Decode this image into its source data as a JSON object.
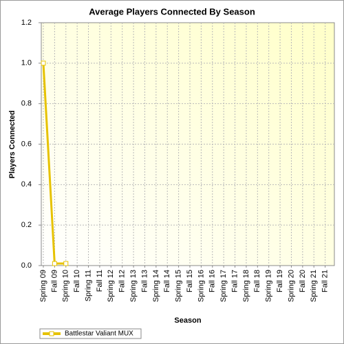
{
  "chart_data": {
    "type": "line",
    "title": "Average Players Connected By Season",
    "xlabel": "Season",
    "ylabel": "Players Connected",
    "categories": [
      "Spring 09",
      "Fall 09",
      "Spring 10",
      "Fall 10",
      "Spring 11",
      "Fall 11",
      "Spring 12",
      "Fall 12",
      "Spring 13",
      "Fall 13",
      "Spring 14",
      "Fall 14",
      "Spring 15",
      "Fall 15",
      "Spring 16",
      "Fall 16",
      "Spring 17",
      "Fall 17",
      "Spring 18",
      "Fall 18",
      "Spring 19",
      "Fall 19",
      "Spring 20",
      "Fall 20",
      "Spring 21",
      "Fall 21"
    ],
    "series": [
      {
        "name": "Battlestar Valiant MUX",
        "color": "#e6c200",
        "values": [
          1.0,
          0.01,
          0.01,
          null,
          null,
          null,
          null,
          null,
          null,
          null,
          null,
          null,
          null,
          null,
          null,
          null,
          null,
          null,
          null,
          null,
          null,
          null,
          null,
          null,
          null,
          null
        ]
      }
    ],
    "ylim": [
      0,
      1.2
    ],
    "yticks": [
      {
        "value": 0,
        "label": "0.0"
      },
      0.2,
      0.4,
      0.6,
      0.8,
      {
        "value": 1,
        "label": "1.0"
      },
      1.2
    ],
    "grid": true,
    "legend": "bottom-left"
  }
}
